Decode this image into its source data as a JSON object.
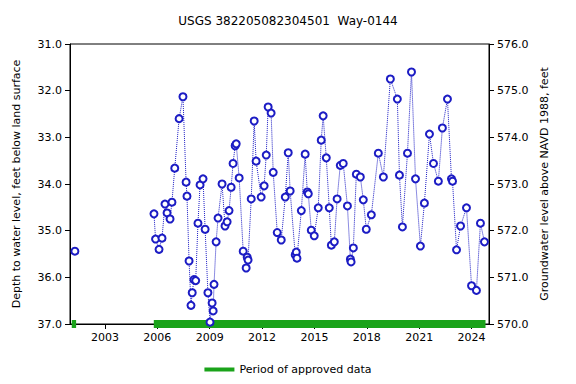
{
  "chart_data": {
    "type": "scatter",
    "title": "USGS 382205082304501  Way-0144",
    "ylabel": "Depth to water level, feet below land surface",
    "y2label": "Groundwater level above NAVD 1988, feet",
    "xlim": [
      2001,
      2025
    ],
    "xticks": [
      2003,
      2006,
      2009,
      2012,
      2015,
      2018,
      2021,
      2024
    ],
    "ylim": [
      37,
      31
    ],
    "yticks": [
      {
        "value": 31,
        "label": "31.0"
      },
      {
        "value": 32,
        "label": "32.0"
      },
      {
        "value": 33,
        "label": "33.0"
      },
      {
        "value": 34,
        "label": "34.0"
      },
      {
        "value": 35,
        "label": "35.0"
      },
      {
        "value": 36,
        "label": "36.0"
      },
      {
        "value": 37,
        "label": "37.0"
      }
    ],
    "y2lim": [
      570,
      576
    ],
    "y2ticks": [
      {
        "value": 570,
        "label": "570.0"
      },
      {
        "value": 571,
        "label": "571.0"
      },
      {
        "value": 572,
        "label": "572.0"
      },
      {
        "value": 573,
        "label": "573.0"
      },
      {
        "value": 574,
        "label": "574.0"
      },
      {
        "value": 575,
        "label": "575.0"
      },
      {
        "value": 576,
        "label": "576.0"
      }
    ],
    "grid": false,
    "legend": "bottom",
    "series": [
      {
        "type": "line",
        "color": "#1c1cc4",
        "marker": "circle",
        "line_style": "dotted",
        "x": [
          2001.28,
          null,
          2005.81,
          2005.9,
          2006.1,
          2006.27,
          2006.44,
          2006.56,
          2006.73,
          2006.84,
          2007.0,
          2007.25,
          2007.47,
          2007.65,
          2007.7,
          2007.82,
          2007.93,
          2008.0,
          2008.1,
          2008.2,
          2008.33,
          2008.45,
          2008.62,
          2008.74,
          2008.9,
          2009.02,
          2009.14,
          2009.2,
          2009.25,
          2009.37,
          2009.48,
          2009.71,
          2009.88,
          2010.0,
          2010.11,
          2010.23,
          2010.34,
          2010.46,
          2010.52,
          2010.69,
          2010.92,
          2011.09,
          2011.15,
          2011.2,
          2011.38,
          2011.55,
          2011.66,
          2011.95,
          2012.12,
          2012.24,
          2012.35,
          2012.52,
          2012.64,
          2012.87,
          2013.1,
          2013.33,
          2013.5,
          2013.61,
          2013.9,
          2013.96,
          2014.0,
          2014.25,
          2014.47,
          2014.59,
          2014.65,
          2014.82,
          2014.99,
          2015.22,
          2015.39,
          2015.5,
          2015.68,
          2015.85,
          2015.97,
          2016.14,
          2016.3,
          2016.48,
          2016.65,
          2016.89,
          2017.06,
          2017.1,
          2017.23,
          2017.4,
          2017.63,
          2017.8,
          2017.97,
          2018.26,
          2018.66,
          2018.95,
          2019.35,
          2019.75,
          2019.87,
          2020.04,
          2020.33,
          2020.56,
          2020.79,
          2021.07,
          2021.3,
          2021.59,
          2021.82,
          2022.1,
          2022.33,
          2022.62,
          2022.85,
          2022.91,
          2023.14,
          2023.37,
          2023.71,
          2024.0,
          2024.28,
          2024.51,
          2024.74
        ],
        "values": [
          35.44,
          null,
          34.64,
          35.18,
          35.4,
          35.16,
          34.43,
          34.62,
          34.75,
          34.39,
          33.66,
          32.6,
          32.13,
          33.96,
          34.26,
          35.65,
          36.6,
          36.33,
          36.05,
          36.07,
          34.84,
          34.02,
          33.89,
          34.97,
          36.33,
          36.96,
          36.55,
          36.72,
          36.15,
          35.24,
          34.73,
          34.0,
          34.9,
          34.81,
          34.57,
          34.07,
          33.56,
          33.18,
          33.14,
          33.87,
          35.44,
          35.8,
          35.57,
          35.63,
          34.32,
          32.65,
          33.51,
          34.28,
          34.04,
          33.38,
          32.35,
          32.48,
          33.75,
          35.04,
          35.2,
          34.28,
          33.33,
          34.15,
          35.52,
          35.46,
          35.59,
          34.57,
          33.36,
          34.17,
          34.21,
          34.99,
          35.11,
          34.51,
          33.06,
          32.54,
          33.44,
          34.51,
          35.31,
          35.24,
          34.32,
          33.6,
          33.56,
          34.47,
          35.61,
          35.67,
          35.37,
          33.79,
          33.85,
          34.34,
          34.97,
          34.66,
          33.34,
          33.85,
          31.75,
          32.18,
          33.81,
          34.92,
          33.34,
          31.6,
          33.89,
          35.33,
          34.41,
          32.93,
          33.56,
          33.94,
          32.8,
          32.18,
          33.89,
          33.94,
          35.41,
          34.9,
          34.51,
          36.18,
          36.28,
          34.84,
          35.24
        ]
      },
      {
        "name": "Period of approved data",
        "type": "line",
        "color": "#1aa31a",
        "line_style": "solid",
        "periods": [
          [
            2001.1,
            2001.35
          ],
          [
            2005.8,
            2024.8
          ]
        ]
      }
    ]
  }
}
